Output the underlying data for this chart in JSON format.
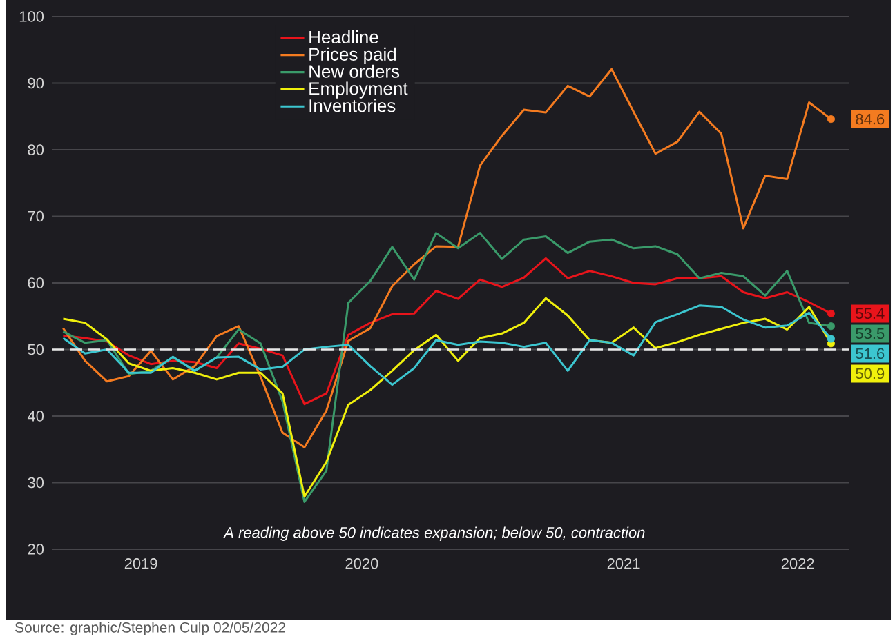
{
  "chart_data": {
    "type": "line",
    "x": [
      "2019-05",
      "2019-06",
      "2019-07",
      "2019-08",
      "2019-09",
      "2019-10",
      "2019-11",
      "2019-12",
      "2020-01",
      "2020-02",
      "2020-03",
      "2020-04",
      "2020-05",
      "2020-06",
      "2020-07",
      "2020-08",
      "2020-09",
      "2020-10",
      "2020-11",
      "2020-12",
      "2021-01",
      "2021-02",
      "2021-03",
      "2021-04",
      "2021-05",
      "2021-06",
      "2021-07",
      "2021-08",
      "2021-09",
      "2021-10",
      "2021-11",
      "2021-12",
      "2022-01",
      "2022-02",
      "2022-03",
      "2022-04"
    ],
    "series": [
      {
        "name": "Headline",
        "color": "#e8141b",
        "values": [
          52.1,
          51.7,
          51.2,
          49.1,
          47.8,
          48.3,
          48.1,
          47.2,
          50.9,
          50.1,
          49.1,
          41.8,
          43.4,
          52.2,
          54.0,
          55.3,
          55.4,
          58.8,
          57.6,
          60.5,
          59.4,
          60.8,
          63.7,
          60.7,
          61.8,
          61.0,
          60.0,
          59.8,
          60.7,
          60.7,
          61.0,
          58.6,
          57.7,
          58.6,
          57.1,
          55.4
        ],
        "value_labels": [
          null,
          null,
          null,
          null,
          null,
          null,
          null,
          null,
          null,
          null,
          null,
          null,
          null,
          null,
          null,
          null,
          null,
          null,
          null,
          null,
          null,
          null,
          null,
          null,
          null,
          null,
          null,
          null,
          null,
          null,
          null,
          null,
          null,
          null,
          null,
          "55.4"
        ]
      },
      {
        "name": "Prices paid",
        "color": "#f47b20",
        "values": [
          53.2,
          48.3,
          45.2,
          46.0,
          49.8,
          45.5,
          47.5,
          52.0,
          53.5,
          45.9,
          37.5,
          35.3,
          40.8,
          51.3,
          53.2,
          59.5,
          62.8,
          65.5,
          65.4,
          77.6,
          82.1,
          86.0,
          85.6,
          89.6,
          88.0,
          92.1,
          85.7,
          79.4,
          81.2,
          85.7,
          82.4,
          68.2,
          76.1,
          75.6,
          87.1,
          84.6
        ],
        "value_labels": [
          null,
          null,
          null,
          null,
          null,
          null,
          null,
          null,
          null,
          null,
          null,
          null,
          null,
          null,
          null,
          null,
          null,
          null,
          null,
          null,
          null,
          null,
          null,
          null,
          null,
          null,
          null,
          null,
          null,
          null,
          null,
          null,
          null,
          null,
          null,
          "84.6"
        ]
      },
      {
        "name": "New orders",
        "color": "#3a9a6a",
        "values": [
          52.7,
          51.0,
          51.4,
          46.3,
          46.8,
          48.8,
          46.8,
          48.8,
          53.0,
          50.9,
          42.2,
          27.1,
          31.8,
          57.0,
          60.3,
          65.4,
          60.5,
          67.5,
          65.2,
          67.5,
          63.6,
          66.5,
          67.0,
          64.5,
          66.2,
          66.5,
          65.2,
          65.5,
          64.3,
          60.7,
          61.5,
          61.0,
          58.1,
          61.8,
          54.0,
          53.5
        ],
        "value_labels": [
          null,
          null,
          null,
          null,
          null,
          null,
          null,
          null,
          null,
          null,
          null,
          null,
          null,
          null,
          null,
          null,
          null,
          null,
          null,
          null,
          null,
          null,
          null,
          null,
          null,
          null,
          null,
          null,
          null,
          null,
          null,
          null,
          null,
          null,
          null,
          "53.5"
        ]
      },
      {
        "name": "Employment",
        "color": "#f0f00c",
        "values": [
          54.6,
          54.0,
          51.5,
          47.9,
          46.8,
          47.2,
          46.5,
          45.5,
          46.5,
          46.5,
          43.4,
          27.9,
          33.1,
          41.7,
          43.9,
          46.8,
          49.9,
          52.2,
          48.3,
          51.7,
          52.4,
          54.0,
          57.7,
          55.1,
          51.4,
          51.0,
          53.3,
          50.2,
          51.1,
          52.2,
          53.1,
          54.0,
          54.6,
          53.0,
          56.4,
          50.9
        ],
        "value_labels": [
          null,
          null,
          null,
          null,
          null,
          null,
          null,
          null,
          null,
          null,
          null,
          null,
          null,
          null,
          null,
          null,
          null,
          null,
          null,
          null,
          null,
          null,
          null,
          null,
          null,
          null,
          null,
          null,
          null,
          null,
          null,
          null,
          null,
          null,
          null,
          "50.9"
        ]
      },
      {
        "name": "Inventories",
        "color": "#3cc6d0",
        "values": [
          51.7,
          49.4,
          50.0,
          46.5,
          46.5,
          48.9,
          46.8,
          48.8,
          48.9,
          47.0,
          47.4,
          50.0,
          50.4,
          50.7,
          47.5,
          44.7,
          47.2,
          51.4,
          50.7,
          51.2,
          51.0,
          50.4,
          51.0,
          46.8,
          51.4,
          51.0,
          49.1,
          54.1,
          55.3,
          56.6,
          56.4,
          54.5,
          53.3,
          53.6,
          55.5,
          51.6
        ],
        "value_labels": [
          null,
          null,
          null,
          null,
          null,
          null,
          null,
          null,
          null,
          null,
          null,
          null,
          null,
          null,
          null,
          null,
          null,
          null,
          null,
          null,
          null,
          null,
          null,
          null,
          null,
          null,
          null,
          null,
          null,
          null,
          null,
          null,
          null,
          null,
          null,
          "51.6"
        ]
      }
    ],
    "xlim": [
      "2019-04-16",
      "2022-04-27"
    ],
    "xticks": [
      {
        "value": "2019-08-18",
        "label": "2019"
      },
      {
        "value": "2020-06-20",
        "label": "2020"
      },
      {
        "value": "2021-06-18",
        "label": "2021"
      },
      {
        "value": "2022-02-16",
        "label": "2022"
      }
    ],
    "ylim": [
      20,
      100
    ],
    "yticks": [
      20,
      30,
      40,
      50,
      60,
      70,
      80,
      90,
      100
    ],
    "grid": "y",
    "legend": "top left",
    "marker": "none",
    "line_style": "solid",
    "ref_lines": [
      {
        "axis": "y",
        "value": 50,
        "color": "#e6e6e6",
        "line_style": "dashed"
      }
    ],
    "annotations": [
      "A reading above 50 indicates expansion; below 50, contraction",
      "Source: graphic/Stephen Culp 02/05/2022"
    ]
  }
}
